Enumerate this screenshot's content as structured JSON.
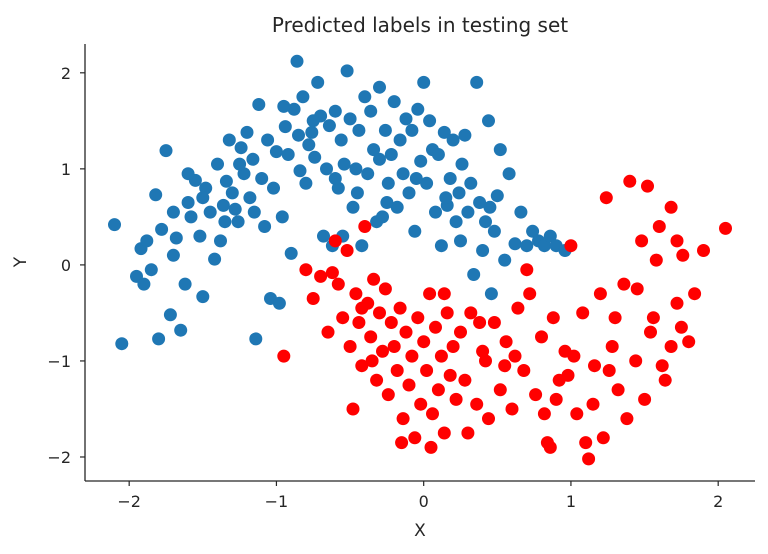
{
  "chart_data": {
    "type": "scatter",
    "title": "Predicted labels in testing set",
    "xlabel": "X",
    "ylabel": "Y",
    "xlim": [
      -2.3,
      2.25
    ],
    "ylim": [
      -2.25,
      2.3
    ],
    "xticks": [
      -2,
      -1,
      0,
      1,
      2
    ],
    "yticks": [
      -2,
      -1,
      0,
      1,
      2
    ],
    "xtick_labels": [
      "−2",
      "−1",
      "0",
      "1",
      "2"
    ],
    "ytick_labels": [
      "−2",
      "−1",
      "0",
      "1",
      "2"
    ],
    "grid": false,
    "legend": false,
    "series": [
      {
        "color": "#1f77b4",
        "points": [
          [
            -2.1,
            0.42
          ],
          [
            -2.05,
            -0.82
          ],
          [
            -1.95,
            -0.12
          ],
          [
            -1.92,
            0.17
          ],
          [
            -1.9,
            -0.2
          ],
          [
            -1.88,
            0.25
          ],
          [
            -1.85,
            -0.05
          ],
          [
            -1.82,
            0.73
          ],
          [
            -1.8,
            -0.77
          ],
          [
            -1.78,
            0.37
          ],
          [
            -1.75,
            1.19
          ],
          [
            -1.72,
            -0.52
          ],
          [
            -1.7,
            0.1
          ],
          [
            -1.68,
            0.28
          ],
          [
            -1.65,
            -0.68
          ],
          [
            -1.62,
            -0.2
          ],
          [
            -1.6,
            0.65
          ],
          [
            -1.58,
            0.5
          ],
          [
            -1.55,
            0.88
          ],
          [
            -1.52,
            0.3
          ],
          [
            -1.5,
            -0.33
          ],
          [
            -1.48,
            0.8
          ],
          [
            -1.45,
            0.55
          ],
          [
            -1.42,
            0.06
          ],
          [
            -1.4,
            1.05
          ],
          [
            -1.38,
            0.25
          ],
          [
            -1.36,
            0.62
          ],
          [
            -1.34,
            0.87
          ],
          [
            -1.32,
            1.3
          ],
          [
            -1.3,
            0.75
          ],
          [
            -1.28,
            0.58
          ],
          [
            -1.26,
            0.45
          ],
          [
            -1.24,
            1.22
          ],
          [
            -1.22,
            0.95
          ],
          [
            -1.2,
            1.38
          ],
          [
            -1.18,
            0.7
          ],
          [
            -1.16,
            1.1
          ],
          [
            -1.14,
            -0.77
          ],
          [
            -1.12,
            1.67
          ],
          [
            -1.1,
            0.9
          ],
          [
            -1.08,
            0.4
          ],
          [
            -1.06,
            1.3
          ],
          [
            -1.04,
            -0.35
          ],
          [
            -1.02,
            0.8
          ],
          [
            -1.0,
            1.18
          ],
          [
            -0.98,
            -0.4
          ],
          [
            -0.96,
            0.5
          ],
          [
            -0.94,
            1.44
          ],
          [
            -0.92,
            1.15
          ],
          [
            -0.9,
            0.12
          ],
          [
            -0.88,
            1.62
          ],
          [
            -0.86,
            2.12
          ],
          [
            -0.84,
            0.98
          ],
          [
            -0.82,
            1.75
          ],
          [
            -0.8,
            0.85
          ],
          [
            -0.78,
            1.25
          ],
          [
            -0.76,
            1.38
          ],
          [
            -0.74,
            1.12
          ],
          [
            -0.72,
            1.9
          ],
          [
            -0.7,
            1.55
          ],
          [
            -0.68,
            0.3
          ],
          [
            -0.66,
            1.0
          ],
          [
            -0.64,
            1.45
          ],
          [
            -0.62,
            0.2
          ],
          [
            -0.6,
            1.6
          ],
          [
            -0.58,
            0.8
          ],
          [
            -0.56,
            1.3
          ],
          [
            -0.54,
            1.05
          ],
          [
            -0.52,
            2.02
          ],
          [
            -0.5,
            1.52
          ],
          [
            -0.48,
            0.6
          ],
          [
            -0.46,
            1.0
          ],
          [
            -0.44,
            1.4
          ],
          [
            -0.42,
            0.2
          ],
          [
            -0.4,
            1.75
          ],
          [
            -0.38,
            0.95
          ],
          [
            -0.36,
            1.6
          ],
          [
            -0.34,
            1.2
          ],
          [
            -0.32,
            0.45
          ],
          [
            -0.3,
            1.85
          ],
          [
            -0.28,
            0.5
          ],
          [
            -0.26,
            1.4
          ],
          [
            -0.24,
            0.85
          ],
          [
            -0.22,
            1.15
          ],
          [
            -0.2,
            1.7
          ],
          [
            -0.18,
            0.6
          ],
          [
            -0.16,
            1.3
          ],
          [
            -0.14,
            0.95
          ],
          [
            -0.12,
            1.52
          ],
          [
            -0.1,
            0.75
          ],
          [
            -0.08,
            1.4
          ],
          [
            -0.06,
            0.35
          ],
          [
            -0.04,
            1.62
          ],
          [
            -0.02,
            1.08
          ],
          [
            0.0,
            1.9
          ],
          [
            0.02,
            0.85
          ],
          [
            0.04,
            1.5
          ],
          [
            0.06,
            1.2
          ],
          [
            0.08,
            0.55
          ],
          [
            0.1,
            1.15
          ],
          [
            0.12,
            0.2
          ],
          [
            0.14,
            1.38
          ],
          [
            0.16,
            0.62
          ],
          [
            0.18,
            0.9
          ],
          [
            0.2,
            1.3
          ],
          [
            0.22,
            0.45
          ],
          [
            0.24,
            0.75
          ],
          [
            0.26,
            1.05
          ],
          [
            0.28,
            1.35
          ],
          [
            0.3,
            0.55
          ],
          [
            0.32,
            0.85
          ],
          [
            0.34,
            -0.1
          ],
          [
            0.36,
            1.9
          ],
          [
            0.38,
            0.65
          ],
          [
            0.4,
            0.15
          ],
          [
            0.42,
            0.45
          ],
          [
            0.44,
            1.5
          ],
          [
            0.46,
            -0.3
          ],
          [
            0.48,
            0.35
          ],
          [
            0.5,
            0.72
          ],
          [
            0.52,
            1.2
          ],
          [
            0.55,
            0.05
          ],
          [
            0.58,
            0.95
          ],
          [
            0.62,
            0.22
          ],
          [
            0.66,
            0.55
          ],
          [
            0.7,
            0.2
          ],
          [
            0.74,
            0.35
          ],
          [
            0.78,
            0.25
          ],
          [
            0.82,
            0.2
          ],
          [
            0.86,
            0.3
          ],
          [
            0.9,
            0.2
          ],
          [
            0.96,
            0.15
          ],
          [
            -0.6,
            0.9
          ],
          [
            -0.45,
            0.75
          ],
          [
            -0.3,
            1.1
          ],
          [
            0.15,
            0.7
          ],
          [
            -1.6,
            0.95
          ],
          [
            -1.35,
            0.45
          ],
          [
            -1.15,
            0.55
          ],
          [
            -0.95,
            1.65
          ],
          [
            -0.75,
            1.5
          ],
          [
            -0.55,
            0.3
          ],
          [
            -0.25,
            0.65
          ],
          [
            -0.05,
            0.9
          ],
          [
            0.25,
            0.25
          ],
          [
            0.45,
            0.6
          ],
          [
            -1.5,
            0.7
          ],
          [
            -1.7,
            0.55
          ],
          [
            -1.25,
            1.05
          ],
          [
            -0.85,
            1.35
          ]
        ]
      },
      {
        "color": "#ff0000",
        "points": [
          [
            -0.95,
            -0.95
          ],
          [
            -0.8,
            -0.05
          ],
          [
            -0.75,
            -0.35
          ],
          [
            -0.7,
            -0.12
          ],
          [
            -0.65,
            -0.7
          ],
          [
            -0.6,
            0.25
          ],
          [
            -0.58,
            -0.2
          ],
          [
            -0.55,
            -0.55
          ],
          [
            -0.52,
            0.15
          ],
          [
            -0.5,
            -0.85
          ],
          [
            -0.48,
            -1.5
          ],
          [
            -0.46,
            -0.3
          ],
          [
            -0.44,
            -0.6
          ],
          [
            -0.42,
            -1.05
          ],
          [
            -0.4,
            0.4
          ],
          [
            -0.38,
            -0.4
          ],
          [
            -0.36,
            -0.75
          ],
          [
            -0.34,
            -0.15
          ],
          [
            -0.32,
            -1.2
          ],
          [
            -0.3,
            -0.5
          ],
          [
            -0.28,
            -0.9
          ],
          [
            -0.26,
            -0.25
          ],
          [
            -0.24,
            -1.35
          ],
          [
            -0.22,
            -0.6
          ],
          [
            -0.2,
            -0.85
          ],
          [
            -0.18,
            -1.1
          ],
          [
            -0.16,
            -0.45
          ],
          [
            -0.14,
            -1.6
          ],
          [
            -0.12,
            -0.7
          ],
          [
            -0.1,
            -1.25
          ],
          [
            -0.08,
            -0.95
          ],
          [
            -0.06,
            -1.8
          ],
          [
            -0.04,
            -0.55
          ],
          [
            -0.02,
            -1.45
          ],
          [
            0.0,
            -0.8
          ],
          [
            0.02,
            -1.1
          ],
          [
            0.04,
            -0.3
          ],
          [
            0.06,
            -1.55
          ],
          [
            0.08,
            -0.65
          ],
          [
            0.1,
            -1.3
          ],
          [
            0.12,
            -0.95
          ],
          [
            0.14,
            -1.75
          ],
          [
            0.16,
            -0.5
          ],
          [
            0.18,
            -1.15
          ],
          [
            0.2,
            -0.85
          ],
          [
            0.22,
            -1.4
          ],
          [
            0.25,
            -0.7
          ],
          [
            0.28,
            -1.2
          ],
          [
            0.32,
            -0.5
          ],
          [
            0.36,
            -1.45
          ],
          [
            0.4,
            -0.9
          ],
          [
            0.44,
            -1.6
          ],
          [
            0.48,
            -0.6
          ],
          [
            0.52,
            -1.3
          ],
          [
            0.56,
            -0.8
          ],
          [
            0.6,
            -1.5
          ],
          [
            0.64,
            -0.45
          ],
          [
            0.68,
            -1.1
          ],
          [
            0.72,
            -0.3
          ],
          [
            0.76,
            -1.35
          ],
          [
            0.8,
            -0.75
          ],
          [
            0.84,
            -1.85
          ],
          [
            0.88,
            -0.55
          ],
          [
            0.92,
            -1.2
          ],
          [
            0.96,
            -0.9
          ],
          [
            1.0,
            0.2
          ],
          [
            1.04,
            -1.55
          ],
          [
            1.08,
            -0.5
          ],
          [
            1.12,
            -2.02
          ],
          [
            1.16,
            -1.05
          ],
          [
            1.2,
            -0.3
          ],
          [
            1.24,
            0.7
          ],
          [
            1.28,
            -0.85
          ],
          [
            1.32,
            -1.3
          ],
          [
            1.36,
            -0.2
          ],
          [
            1.4,
            0.87
          ],
          [
            1.44,
            -1.0
          ],
          [
            1.48,
            0.25
          ],
          [
            1.52,
            0.82
          ],
          [
            1.56,
            -0.55
          ],
          [
            1.6,
            0.4
          ],
          [
            1.64,
            -1.2
          ],
          [
            1.68,
            0.6
          ],
          [
            1.72,
            -0.4
          ],
          [
            1.76,
            0.1
          ],
          [
            1.8,
            -0.8
          ],
          [
            1.84,
            -0.3
          ],
          [
            1.9,
            0.15
          ],
          [
            2.05,
            0.38
          ],
          [
            1.02,
            -0.95
          ],
          [
            0.3,
            -1.75
          ],
          [
            -0.35,
            -1.0
          ],
          [
            -0.15,
            -1.85
          ],
          [
            0.05,
            -1.9
          ],
          [
            0.42,
            -1.0
          ],
          [
            0.86,
            -1.9
          ],
          [
            1.1,
            -1.85
          ],
          [
            1.22,
            -1.8
          ],
          [
            1.38,
            -1.6
          ],
          [
            1.5,
            -1.4
          ],
          [
            1.62,
            -1.05
          ],
          [
            1.75,
            -0.65
          ],
          [
            0.55,
            -1.05
          ],
          [
            0.7,
            -0.05
          ],
          [
            0.9,
            -1.4
          ],
          [
            1.15,
            -1.45
          ],
          [
            1.3,
            -0.55
          ],
          [
            1.45,
            -0.25
          ],
          [
            1.58,
            0.05
          ],
          [
            1.68,
            -0.85
          ],
          [
            1.72,
            0.25
          ],
          [
            -0.62,
            -0.08
          ],
          [
            -0.42,
            -0.45
          ],
          [
            0.14,
            -0.3
          ],
          [
            0.38,
            -0.6
          ],
          [
            0.62,
            -0.95
          ],
          [
            0.82,
            -1.55
          ],
          [
            0.98,
            -1.15
          ],
          [
            1.26,
            -1.1
          ],
          [
            1.54,
            -0.7
          ]
        ]
      }
    ]
  }
}
